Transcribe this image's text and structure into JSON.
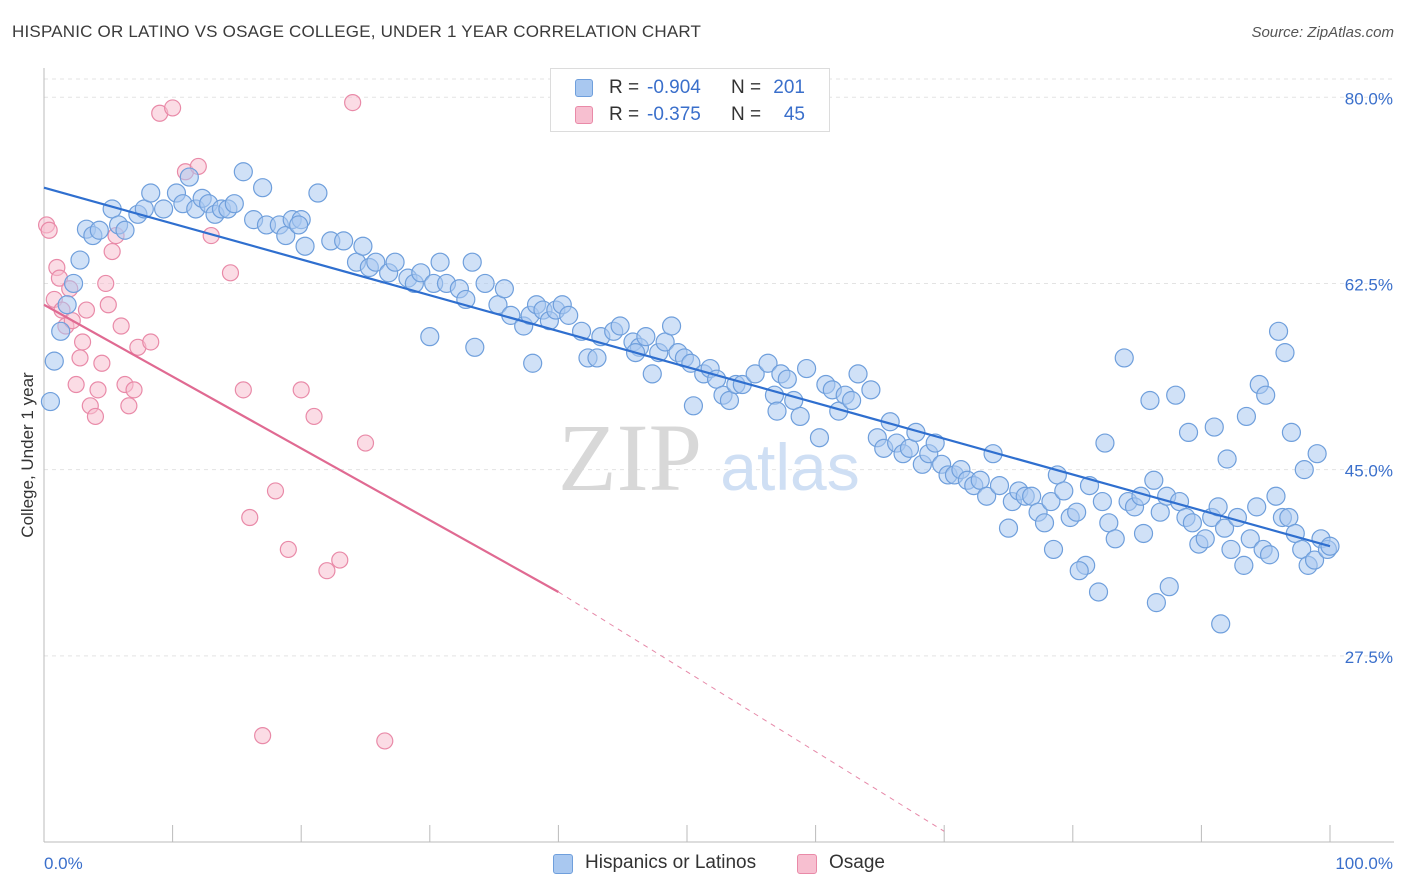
{
  "header": {
    "title": "HISPANIC OR LATINO VS OSAGE COLLEGE, UNDER 1 YEAR CORRELATION CHART",
    "source": "Source: ZipAtlas.com"
  },
  "legend_top": {
    "rows": [
      {
        "r_label": "R =",
        "r_value": "-0.904",
        "n_label": "N =",
        "n_value": "201"
      },
      {
        "r_label": "R =",
        "r_value": "-0.375",
        "n_label": "N =",
        "n_value": "45"
      }
    ]
  },
  "legend_bottom": {
    "items": [
      {
        "label": "Hispanics or Latinos"
      },
      {
        "label": "Osage"
      }
    ]
  },
  "colors": {
    "blue_fill": "#a9c8f0",
    "blue_stroke": "#6f9fdc",
    "blue_line": "#2f6fcf",
    "pink_fill": "#f7bfd0",
    "pink_stroke": "#e98aa8",
    "pink_line": "#e06a92",
    "axis_label": "#3a6fcb",
    "grid": "#e3e3e3"
  },
  "chart_data": {
    "type": "scatter",
    "title": "HISPANIC OR LATINO VS OSAGE COLLEGE, UNDER 1 YEAR CORRELATION CHART",
    "xlabel": "",
    "ylabel": "College, Under 1 year",
    "xlim": [
      0,
      100
    ],
    "ylim": [
      10,
      82
    ],
    "x_tick_labels": [
      "0.0%",
      "100.0%"
    ],
    "y_ticks": [
      27.5,
      45.0,
      62.5,
      80.0
    ],
    "y_tick_labels": [
      "27.5%",
      "45.0%",
      "62.5%",
      "80.0%"
    ],
    "grid": true,
    "watermark": "ZIPatlas",
    "series": [
      {
        "name": "Hispanics or Latinos",
        "R": -0.904,
        "N": 201,
        "trend": {
          "x": [
            0,
            100
          ],
          "y": [
            71.5,
            37.8
          ]
        },
        "points": [
          [
            0.5,
            51.4
          ],
          [
            0.8,
            55.2
          ],
          [
            1.3,
            58.0
          ],
          [
            1.8,
            60.5
          ],
          [
            2.3,
            62.5
          ],
          [
            2.8,
            64.7
          ],
          [
            3.3,
            67.6
          ],
          [
            3.8,
            67.0
          ],
          [
            4.3,
            67.5
          ],
          [
            5.3,
            69.5
          ],
          [
            5.8,
            68.0
          ],
          [
            6.3,
            67.5
          ],
          [
            7.3,
            69.0
          ],
          [
            7.8,
            69.5
          ],
          [
            8.3,
            71.0
          ],
          [
            9.3,
            69.5
          ],
          [
            10.3,
            71.0
          ],
          [
            10.8,
            70.0
          ],
          [
            11.3,
            72.5
          ],
          [
            11.8,
            69.5
          ],
          [
            12.3,
            70.5
          ],
          [
            12.8,
            70.0
          ],
          [
            13.3,
            69.0
          ],
          [
            13.8,
            69.5
          ],
          [
            14.3,
            69.5
          ],
          [
            14.8,
            70.0
          ],
          [
            16.3,
            68.5
          ],
          [
            17.3,
            68.0
          ],
          [
            15.5,
            73.0
          ],
          [
            17.0,
            71.5
          ],
          [
            18.3,
            68.0
          ],
          [
            18.8,
            67.0
          ],
          [
            19.3,
            68.5
          ],
          [
            20.0,
            68.5
          ],
          [
            20.3,
            66.0
          ],
          [
            21.3,
            71.0
          ],
          [
            22.3,
            66.5
          ],
          [
            23.3,
            66.5
          ],
          [
            19.8,
            68.0
          ],
          [
            24.3,
            64.5
          ],
          [
            24.8,
            66.0
          ],
          [
            25.3,
            64.0
          ],
          [
            25.8,
            64.5
          ],
          [
            26.8,
            63.5
          ],
          [
            27.3,
            64.5
          ],
          [
            28.3,
            63.0
          ],
          [
            28.8,
            62.5
          ],
          [
            29.3,
            63.5
          ],
          [
            30.3,
            62.5
          ],
          [
            30.8,
            64.5
          ],
          [
            31.3,
            62.5
          ],
          [
            32.3,
            62.0
          ],
          [
            32.8,
            61.0
          ],
          [
            33.3,
            64.5
          ],
          [
            34.3,
            62.5
          ],
          [
            35.3,
            60.5
          ],
          [
            35.8,
            62.0
          ],
          [
            36.3,
            59.5
          ],
          [
            37.3,
            58.5
          ],
          [
            37.8,
            59.5
          ],
          [
            38.3,
            60.5
          ],
          [
            38.8,
            60.0
          ],
          [
            39.3,
            59.0
          ],
          [
            39.8,
            60.0
          ],
          [
            40.3,
            60.5
          ],
          [
            40.8,
            59.5
          ],
          [
            41.8,
            58.0
          ],
          [
            42.3,
            55.5
          ],
          [
            43.3,
            57.5
          ],
          [
            44.3,
            58.0
          ],
          [
            44.8,
            58.5
          ],
          [
            45.8,
            57.0
          ],
          [
            46.3,
            56.5
          ],
          [
            46.8,
            57.5
          ],
          [
            47.3,
            54.0
          ],
          [
            47.8,
            56.0
          ],
          [
            48.3,
            57.0
          ],
          [
            48.8,
            58.5
          ],
          [
            49.3,
            56.0
          ],
          [
            49.8,
            55.5
          ],
          [
            50.3,
            55.0
          ],
          [
            51.3,
            54.0
          ],
          [
            51.8,
            54.5
          ],
          [
            52.3,
            53.5
          ],
          [
            52.8,
            52.0
          ],
          [
            53.3,
            51.5
          ],
          [
            53.8,
            53.0
          ],
          [
            54.3,
            53.0
          ],
          [
            55.3,
            54.0
          ],
          [
            56.3,
            55.0
          ],
          [
            56.8,
            52.0
          ],
          [
            57.3,
            54.0
          ],
          [
            57.8,
            53.5
          ],
          [
            58.3,
            51.5
          ],
          [
            58.8,
            50.0
          ],
          [
            59.3,
            54.5
          ],
          [
            60.3,
            48.0
          ],
          [
            60.8,
            53.0
          ],
          [
            61.3,
            52.5
          ],
          [
            61.8,
            50.5
          ],
          [
            62.3,
            52.0
          ],
          [
            62.8,
            51.5
          ],
          [
            63.3,
            54.0
          ],
          [
            64.3,
            52.5
          ],
          [
            64.8,
            48.0
          ],
          [
            65.3,
            47.0
          ],
          [
            65.8,
            49.5
          ],
          [
            66.3,
            47.5
          ],
          [
            66.8,
            46.5
          ],
          [
            67.3,
            47.0
          ],
          [
            67.8,
            48.5
          ],
          [
            68.3,
            45.5
          ],
          [
            68.8,
            46.5
          ],
          [
            69.3,
            47.5
          ],
          [
            69.8,
            45.5
          ],
          [
            70.3,
            44.5
          ],
          [
            70.8,
            44.5
          ],
          [
            71.3,
            45.0
          ],
          [
            71.8,
            44.0
          ],
          [
            72.3,
            43.5
          ],
          [
            72.8,
            44.0
          ],
          [
            73.3,
            42.5
          ],
          [
            73.8,
            46.5
          ],
          [
            74.3,
            43.5
          ],
          [
            75.3,
            42.0
          ],
          [
            75.8,
            43.0
          ],
          [
            76.3,
            42.5
          ],
          [
            76.8,
            42.5
          ],
          [
            77.3,
            41.0
          ],
          [
            77.8,
            40.0
          ],
          [
            78.3,
            42.0
          ],
          [
            78.8,
            44.5
          ],
          [
            79.3,
            43.0
          ],
          [
            79.8,
            40.5
          ],
          [
            80.3,
            41.0
          ],
          [
            81.3,
            43.5
          ],
          [
            82.3,
            42.0
          ],
          [
            82.8,
            40.0
          ],
          [
            83.3,
            38.5
          ],
          [
            84.3,
            42.0
          ],
          [
            84.8,
            41.5
          ],
          [
            85.3,
            42.5
          ],
          [
            86.3,
            44.0
          ],
          [
            86.8,
            41.0
          ],
          [
            87.3,
            42.5
          ],
          [
            88.3,
            42.0
          ],
          [
            88.8,
            40.5
          ],
          [
            89.3,
            40.0
          ],
          [
            89.8,
            38.0
          ],
          [
            90.3,
            38.5
          ],
          [
            90.8,
            40.5
          ],
          [
            91.3,
            41.5
          ],
          [
            91.8,
            39.5
          ],
          [
            92.3,
            37.5
          ],
          [
            92.8,
            40.5
          ],
          [
            93.3,
            36.0
          ],
          [
            93.8,
            38.5
          ],
          [
            94.3,
            41.5
          ],
          [
            94.8,
            37.5
          ],
          [
            95.3,
            37.0
          ],
          [
            95.8,
            42.5
          ],
          [
            96.3,
            40.5
          ],
          [
            96.8,
            40.5
          ],
          [
            97.3,
            39.0
          ],
          [
            97.8,
            37.5
          ],
          [
            98.3,
            36.0
          ],
          [
            98.8,
            36.5
          ],
          [
            99.3,
            38.5
          ],
          [
            99.8,
            37.5
          ],
          [
            100.0,
            37.8
          ],
          [
            96.0,
            58.0
          ],
          [
            96.5,
            56.0
          ],
          [
            94.5,
            53.0
          ],
          [
            95.0,
            52.0
          ],
          [
            84.0,
            55.5
          ],
          [
            82.5,
            47.5
          ],
          [
            86.0,
            51.5
          ],
          [
            88.0,
            52.0
          ],
          [
            91.0,
            49.0
          ],
          [
            92.0,
            46.0
          ],
          [
            89.0,
            48.5
          ],
          [
            93.5,
            50.0
          ],
          [
            97.0,
            48.5
          ],
          [
            99.0,
            46.5
          ],
          [
            98.0,
            45.0
          ],
          [
            75.0,
            39.5
          ],
          [
            78.5,
            37.5
          ],
          [
            81.0,
            36.0
          ],
          [
            82.0,
            33.5
          ],
          [
            86.5,
            32.5
          ],
          [
            91.5,
            30.5
          ],
          [
            80.5,
            35.5
          ],
          [
            85.5,
            39.0
          ],
          [
            87.5,
            34.0
          ],
          [
            30.0,
            57.5
          ],
          [
            33.5,
            56.5
          ],
          [
            38.0,
            55.0
          ],
          [
            43.0,
            55.5
          ],
          [
            46.0,
            56.0
          ],
          [
            50.5,
            51.0
          ],
          [
            57.0,
            50.5
          ]
        ]
      },
      {
        "name": "Osage",
        "R": -0.375,
        "N": 45,
        "trend": {
          "x": [
            0,
            40
          ],
          "y": [
            60.5,
            33.5
          ]
        },
        "trend_dashed_extension": {
          "x": [
            40,
            70
          ],
          "y": [
            33.5,
            11.0
          ]
        },
        "points": [
          [
            0.2,
            68.0
          ],
          [
            0.4,
            67.5
          ],
          [
            0.8,
            61.0
          ],
          [
            1.0,
            64.0
          ],
          [
            1.2,
            63.0
          ],
          [
            1.4,
            60.0
          ],
          [
            1.7,
            58.5
          ],
          [
            2.0,
            62.0
          ],
          [
            2.2,
            59.0
          ],
          [
            2.5,
            53.0
          ],
          [
            2.8,
            55.5
          ],
          [
            3.0,
            57.0
          ],
          [
            3.3,
            60.0
          ],
          [
            3.6,
            51.0
          ],
          [
            4.0,
            50.0
          ],
          [
            4.2,
            52.5
          ],
          [
            4.5,
            55.0
          ],
          [
            4.8,
            62.5
          ],
          [
            5.0,
            60.5
          ],
          [
            5.3,
            65.5
          ],
          [
            5.6,
            67.0
          ],
          [
            6.0,
            58.5
          ],
          [
            6.3,
            53.0
          ],
          [
            6.6,
            51.0
          ],
          [
            7.0,
            52.5
          ],
          [
            7.3,
            56.5
          ],
          [
            8.3,
            57.0
          ],
          [
            9.0,
            78.5
          ],
          [
            10.0,
            79.0
          ],
          [
            11.0,
            73.0
          ],
          [
            12.0,
            73.5
          ],
          [
            13.0,
            67.0
          ],
          [
            14.5,
            63.5
          ],
          [
            15.5,
            52.5
          ],
          [
            16.0,
            40.5
          ],
          [
            17.0,
            20.0
          ],
          [
            18.0,
            43.0
          ],
          [
            19.0,
            37.5
          ],
          [
            20.0,
            52.5
          ],
          [
            21.0,
            50.0
          ],
          [
            22.0,
            35.5
          ],
          [
            23.0,
            36.5
          ],
          [
            24.0,
            79.5
          ],
          [
            25.0,
            47.5
          ],
          [
            26.5,
            19.5
          ]
        ]
      }
    ]
  }
}
